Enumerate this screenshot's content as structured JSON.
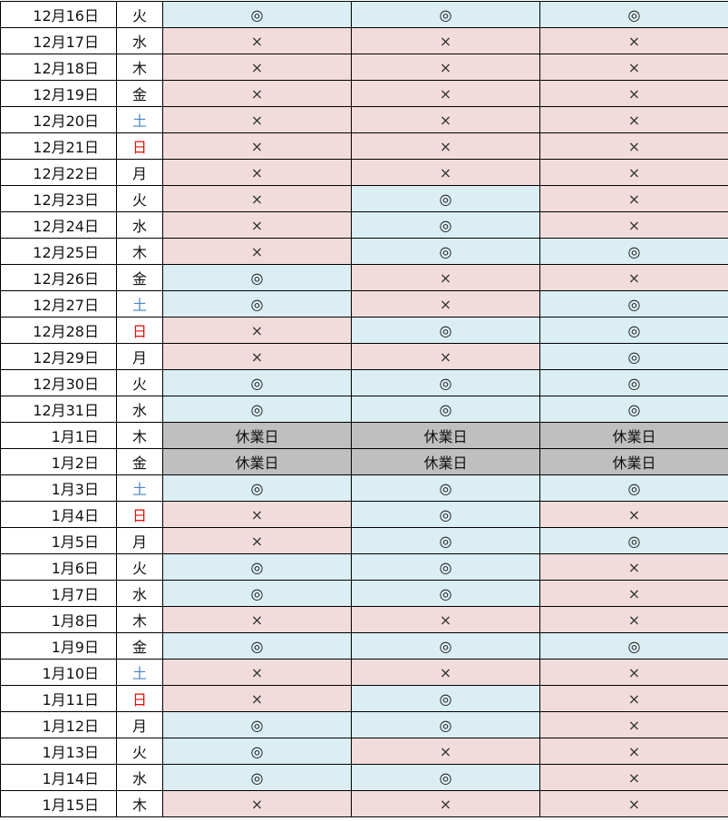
{
  "colors": {
    "circle_bg": "#daeef3",
    "cross_bg": "#f2dcdb",
    "holiday_bg": "#bfbfbf",
    "saturday": "#4a86c8",
    "sunday": "#ff0000"
  },
  "rows": [
    {
      "date": "12月16日",
      "wd": "火",
      "marks": [
        "◎",
        "◎",
        "◎"
      ]
    },
    {
      "date": "12月17日",
      "wd": "水",
      "marks": [
        "×",
        "×",
        "×"
      ]
    },
    {
      "date": "12月18日",
      "wd": "木",
      "marks": [
        "×",
        "×",
        "×"
      ]
    },
    {
      "date": "12月19日",
      "wd": "金",
      "marks": [
        "×",
        "×",
        "×"
      ]
    },
    {
      "date": "12月20日",
      "wd": "土",
      "marks": [
        "×",
        "×",
        "×"
      ]
    },
    {
      "date": "12月21日",
      "wd": "日",
      "marks": [
        "×",
        "×",
        "×"
      ]
    },
    {
      "date": "12月22日",
      "wd": "月",
      "marks": [
        "×",
        "×",
        "×"
      ]
    },
    {
      "date": "12月23日",
      "wd": "火",
      "marks": [
        "×",
        "◎",
        "×"
      ]
    },
    {
      "date": "12月24日",
      "wd": "水",
      "marks": [
        "×",
        "◎",
        "×"
      ]
    },
    {
      "date": "12月25日",
      "wd": "木",
      "marks": [
        "×",
        "◎",
        "◎"
      ]
    },
    {
      "date": "12月26日",
      "wd": "金",
      "marks": [
        "◎",
        "×",
        "×"
      ]
    },
    {
      "date": "12月27日",
      "wd": "土",
      "marks": [
        "◎",
        "×",
        "◎"
      ]
    },
    {
      "date": "12月28日",
      "wd": "日",
      "marks": [
        "×",
        "◎",
        "◎"
      ]
    },
    {
      "date": "12月29日",
      "wd": "月",
      "marks": [
        "×",
        "×",
        "◎"
      ]
    },
    {
      "date": "12月30日",
      "wd": "火",
      "marks": [
        "◎",
        "◎",
        "◎"
      ]
    },
    {
      "date": "12月31日",
      "wd": "水",
      "marks": [
        "◎",
        "◎",
        "◎"
      ]
    },
    {
      "date": "1月1日",
      "wd": "木",
      "marks": [
        "休業日",
        "休業日",
        "休業日"
      ]
    },
    {
      "date": "1月2日",
      "wd": "金",
      "marks": [
        "休業日",
        "休業日",
        "休業日"
      ]
    },
    {
      "date": "1月3日",
      "wd": "土",
      "marks": [
        "◎",
        "◎",
        "◎"
      ]
    },
    {
      "date": "1月4日",
      "wd": "日",
      "marks": [
        "×",
        "◎",
        "×"
      ]
    },
    {
      "date": "1月5日",
      "wd": "月",
      "marks": [
        "×",
        "◎",
        "◎"
      ]
    },
    {
      "date": "1月6日",
      "wd": "火",
      "marks": [
        "◎",
        "◎",
        "×"
      ]
    },
    {
      "date": "1月7日",
      "wd": "水",
      "marks": [
        "◎",
        "◎",
        "×"
      ]
    },
    {
      "date": "1月8日",
      "wd": "木",
      "marks": [
        "×",
        "×",
        "×"
      ]
    },
    {
      "date": "1月9日",
      "wd": "金",
      "marks": [
        "◎",
        "◎",
        "◎"
      ]
    },
    {
      "date": "1月10日",
      "wd": "土",
      "marks": [
        "×",
        "×",
        "×"
      ]
    },
    {
      "date": "1月11日",
      "wd": "日",
      "marks": [
        "×",
        "◎",
        "×"
      ]
    },
    {
      "date": "1月12日",
      "wd": "月",
      "marks": [
        "◎",
        "◎",
        "×"
      ]
    },
    {
      "date": "1月13日",
      "wd": "火",
      "marks": [
        "◎",
        "×",
        "×"
      ]
    },
    {
      "date": "1月14日",
      "wd": "水",
      "marks": [
        "◎",
        "◎",
        "×"
      ]
    },
    {
      "date": "1月15日",
      "wd": "木",
      "marks": [
        "×",
        "×",
        "×"
      ]
    }
  ]
}
